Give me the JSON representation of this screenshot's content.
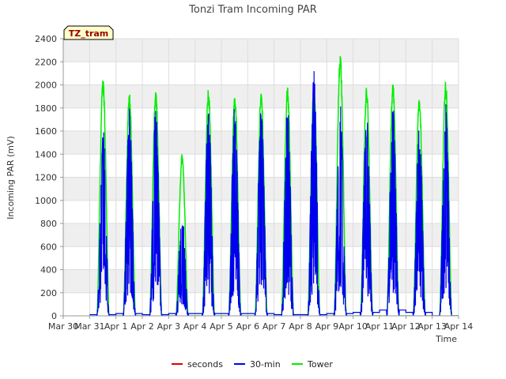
{
  "chart_data": {
    "type": "line",
    "title": "Tonzi Tram Incoming PAR",
    "xlabel": "Time",
    "ylabel": "Incoming PAR (mV)",
    "badge": "TZ_tram",
    "ylim": [
      0,
      2400
    ],
    "yticks": [
      0,
      200,
      400,
      600,
      800,
      1000,
      1200,
      1400,
      1600,
      1800,
      2000,
      2200,
      2400
    ],
    "xlim": [
      0,
      15
    ],
    "xtick_labels": [
      "Mar 30",
      "Mar 31",
      "Apr 1",
      "Apr 2",
      "Apr 3",
      "Apr 4",
      "Apr 5",
      "Apr 6",
      "Apr 7",
      "Apr 8",
      "Apr 9",
      "Apr 10",
      "Apr 11",
      "Apr 12",
      "Apr 13",
      "Apr 14"
    ],
    "grid": true,
    "legend_position": "bottom-center",
    "days": [
      "Mar 31",
      "Apr 1",
      "Apr 2",
      "Apr 3",
      "Apr 4",
      "Apr 5",
      "Apr 6",
      "Apr 7",
      "Apr 8",
      "Apr 9",
      "Apr 10",
      "Apr 11",
      "Apr 12",
      "Apr 13"
    ],
    "series": [
      {
        "name": "seconds",
        "color": "#dd0000",
        "values": []
      },
      {
        "name": "30-min",
        "color": "#0000ee",
        "daily_peak": [
          1630,
          1800,
          1820,
          900,
          1840,
          1860,
          1820,
          1820,
          2150,
          1830,
          1800,
          1840,
          1630,
          1840
        ],
        "night_level": [
          10,
          20,
          10,
          20,
          20,
          20,
          20,
          10,
          10,
          20,
          30,
          50,
          30,
          0
        ]
      },
      {
        "name": "Tower",
        "color": "#00ee00",
        "daily_peak": [
          2070,
          1930,
          1960,
          1410,
          1970,
          1930,
          1950,
          1980,
          2020,
          2290,
          1990,
          2020,
          1910,
          2050
        ]
      }
    ]
  }
}
